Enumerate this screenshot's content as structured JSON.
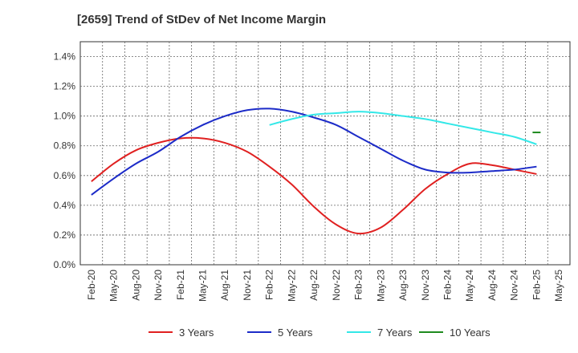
{
  "chart_data": {
    "type": "line",
    "title": "[2659]  Trend of StDev of Net Income Margin",
    "x_labels": [
      "Feb-20",
      "May-20",
      "Aug-20",
      "Nov-20",
      "Feb-21",
      "May-21",
      "Aug-21",
      "Nov-21",
      "Feb-22",
      "May-22",
      "Aug-22",
      "Nov-22",
      "Feb-23",
      "May-23",
      "Aug-23",
      "Nov-23",
      "Feb-24",
      "May-24",
      "Aug-24",
      "Nov-24",
      "Feb-25",
      "May-25"
    ],
    "y_ticks": [
      "0.0%",
      "0.2%",
      "0.4%",
      "0.6%",
      "0.8%",
      "1.0%",
      "1.2%",
      "1.4%"
    ],
    "ylim": [
      0,
      1.5
    ],
    "y_unit": "%",
    "grid": true,
    "legend_position": "bottom",
    "series": [
      {
        "name": "3 Years",
        "color": "#e02020",
        "values": [
          0.56,
          0.68,
          0.77,
          0.82,
          0.85,
          0.85,
          0.82,
          0.76,
          0.66,
          0.54,
          0.39,
          0.27,
          0.21,
          0.25,
          0.37,
          0.51,
          0.61,
          0.68,
          0.67,
          0.64,
          0.61,
          null
        ]
      },
      {
        "name": "5 Years",
        "color": "#1c2bc8",
        "values": [
          0.47,
          0.58,
          0.68,
          0.76,
          0.86,
          0.94,
          1.0,
          1.04,
          1.05,
          1.03,
          0.99,
          0.94,
          0.86,
          0.78,
          0.7,
          0.64,
          0.62,
          0.62,
          0.63,
          0.64,
          0.66,
          null
        ]
      },
      {
        "name": "7 Years",
        "color": "#33e8e8",
        "values": [
          null,
          null,
          null,
          null,
          null,
          null,
          null,
          null,
          0.94,
          0.98,
          1.01,
          1.02,
          1.03,
          1.02,
          1.0,
          0.98,
          0.95,
          0.92,
          0.89,
          0.86,
          0.81,
          null
        ]
      },
      {
        "name": "10 Years",
        "color": "#1e8a1e",
        "values": [
          null,
          null,
          null,
          null,
          null,
          null,
          null,
          null,
          null,
          null,
          null,
          null,
          null,
          null,
          null,
          null,
          null,
          null,
          null,
          null,
          0.89,
          null
        ]
      }
    ]
  }
}
